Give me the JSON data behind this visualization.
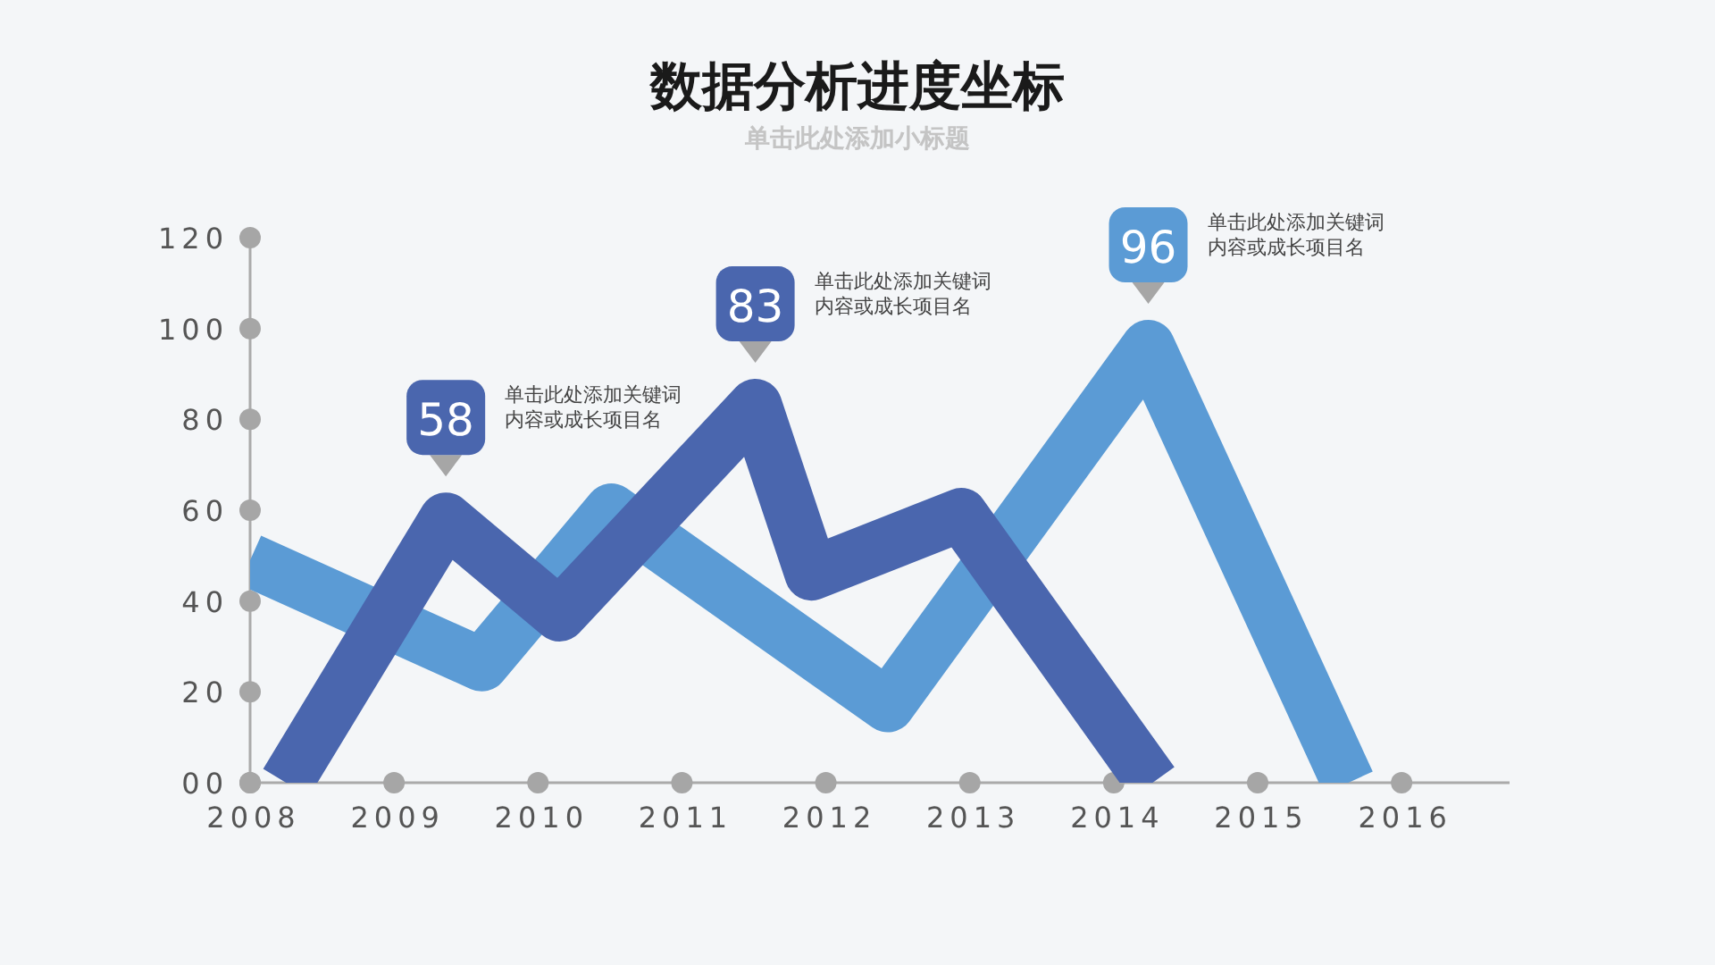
{
  "chart_data": {
    "type": "line",
    "title": "数据分析进度坐标",
    "subtitle": "单击此处添加小标题",
    "series": [
      {
        "color": "#5b9bd5",
        "x": [
          2008,
          2009.61,
          2010.51,
          2012.43,
          2014.24,
          2015.63
        ],
        "values": [
          49,
          26,
          60,
          17,
          96,
          0
        ],
        "value_labels": [
          null,
          null,
          null,
          null,
          "96",
          null
        ]
      },
      {
        "color": "#4a66ae",
        "x": [
          2008.25,
          2009.36,
          2010.15,
          2011.51,
          2011.9,
          2012.94,
          2014.27
        ],
        "values": [
          0,
          58,
          37,
          83,
          46,
          59,
          0
        ],
        "value_labels": [
          null,
          "58",
          null,
          "83",
          null,
          null,
          null
        ]
      }
    ],
    "xlim": [
      2008,
      2016.75
    ],
    "ylim": [
      0,
      120
    ],
    "xticks": [
      2008,
      2009,
      2010,
      2011,
      2012,
      2013,
      2014,
      2015,
      2016
    ],
    "yticks": [
      {
        "value": 0,
        "label": "00"
      },
      20,
      40,
      60,
      80,
      100,
      120
    ],
    "annotations": [
      "单击此处添加关键词内容或成长项目名",
      "单击此处添加关键词内容或成长项目名",
      "单击此处添加关键词内容或成长项目名"
    ]
  }
}
